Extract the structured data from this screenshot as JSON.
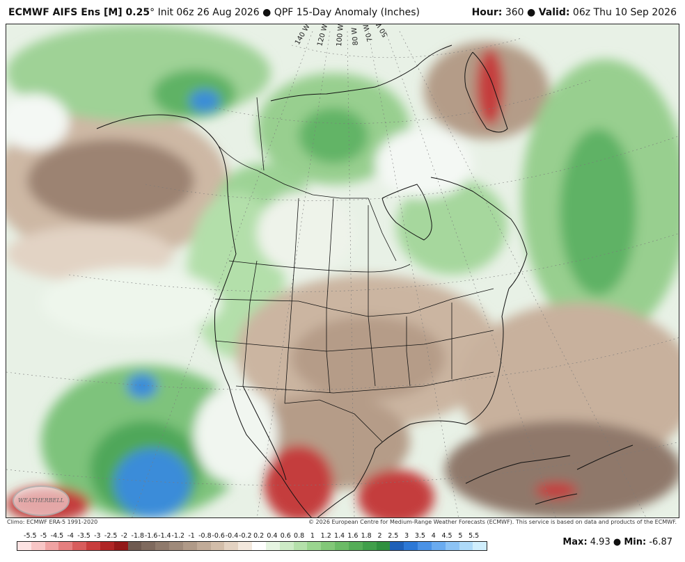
{
  "header": {
    "model": "ECMWF AIFS Ens [M] 0.25",
    "degree": "°",
    "init": "Init 06z 26 Aug 2026",
    "bullet": "●",
    "product": "QPF 15-Day Anomaly (Inches)",
    "hour_label": "Hour:",
    "hour_value": "360",
    "valid_label": "Valid:",
    "valid_value": "06z Thu 10 Sep 2026"
  },
  "map": {
    "meridian_labels": [
      "140 W",
      "120 W",
      "100 W",
      "80 W",
      "70 W",
      "50 W"
    ],
    "colors": {
      "background": "#eaf4ea",
      "dry_light": "#dcc7b4",
      "dry_mid": "#b79e88",
      "dry_dark": "#8a7363",
      "wet_light": "#b8dfb0",
      "wet_mid": "#77bf78",
      "wet_dark": "#3e9a50",
      "very_wet": "#3b8cd9",
      "very_dry": "#c73a3a",
      "ocean_white": "#f4f8f4"
    }
  },
  "logo": {
    "text": "WEATHERBELL"
  },
  "credits": {
    "left": "Climo: ECMWF ERA-5 1991-2020",
    "right": "© 2026 European Centre for Medium-Range Weather Forecasts (ECMWF). This service is based on data and products of the ECMWF."
  },
  "legend": {
    "ticks": [
      "-5.5",
      "-5",
      "-4.5",
      "-4",
      "-3.5",
      "-3",
      "-2.5",
      "-2",
      "-1.8",
      "-1.6",
      "-1.4",
      "-1.2",
      "-1",
      "-0.8",
      "-0.6",
      "-0.4",
      "-0.2",
      "0.2",
      "0.4",
      "0.6",
      "0.8",
      "1",
      "1.2",
      "1.4",
      "1.6",
      "1.8",
      "2",
      "2.5",
      "3",
      "3.5",
      "4",
      "4.5",
      "5",
      "5.5"
    ],
    "colors": [
      "#fde3e3",
      "#f8c6c6",
      "#f0a3a3",
      "#e57f7f",
      "#d85c5c",
      "#c83c3c",
      "#b02525",
      "#931818",
      "#6f5a50",
      "#7f6a5e",
      "#8f7a6c",
      "#9f8a7a",
      "#b09a88",
      "#c1ab98",
      "#d2bda9",
      "#e3d2c1",
      "#f3e8dd",
      "#ffffff",
      "#e6f5e2",
      "#cdebc6",
      "#b4e0aa",
      "#9ad58f",
      "#82c878",
      "#6bbb66",
      "#55ad57",
      "#409f4a",
      "#2f903f",
      "#1e60b8",
      "#2c78d6",
      "#4a92e6",
      "#6aabef",
      "#8cc3f5",
      "#aedaf9",
      "#d0eefd"
    ]
  },
  "stats": {
    "max_label": "Max:",
    "max_value": "4.93",
    "min_label": "Min:",
    "min_value": "-6.87"
  }
}
